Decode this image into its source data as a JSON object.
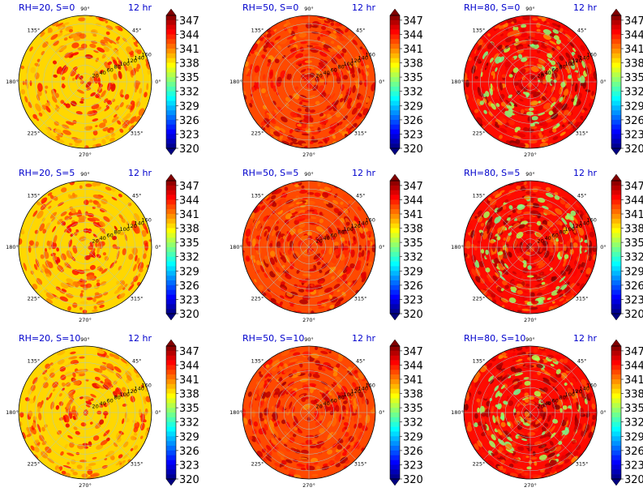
{
  "chart_data": {
    "type": "heatmap",
    "projection": "polar",
    "layout": "3x3 grid",
    "time_label": "12 hr",
    "angle_ticks": [
      "90°",
      "45°",
      "0°",
      "315°",
      "270°",
      "225°",
      "180°",
      "135°"
    ],
    "radial_ticks": [
      "20",
      "40",
      "60",
      "80",
      "100",
      "120",
      "140",
      "160"
    ],
    "colorbar": {
      "ticks": [
        "347",
        "344",
        "341",
        "338",
        "335",
        "332",
        "329",
        "326",
        "323",
        "320"
      ],
      "range": [
        320,
        348
      ],
      "extend": "both",
      "colormap": "jet"
    },
    "panels": [
      {
        "title": "RH=20, S=0",
        "rh": 20,
        "s": 0
      },
      {
        "title": "RH=50, S=0",
        "rh": 50,
        "s": 0
      },
      {
        "title": "RH=80, S=0",
        "rh": 80,
        "s": 0
      },
      {
        "title": "RH=20, S=5",
        "rh": 20,
        "s": 5
      },
      {
        "title": "RH=50, S=5",
        "rh": 50,
        "s": 5
      },
      {
        "title": "RH=80, S=5",
        "rh": 80,
        "s": 5
      },
      {
        "title": "RH=20, S=10",
        "rh": 20,
        "s": 10
      },
      {
        "title": "RH=50, S=10",
        "rh": 50,
        "s": 10
      },
      {
        "title": "RH=80, S=10",
        "rh": 80,
        "s": 10
      }
    ],
    "grid": true
  }
}
